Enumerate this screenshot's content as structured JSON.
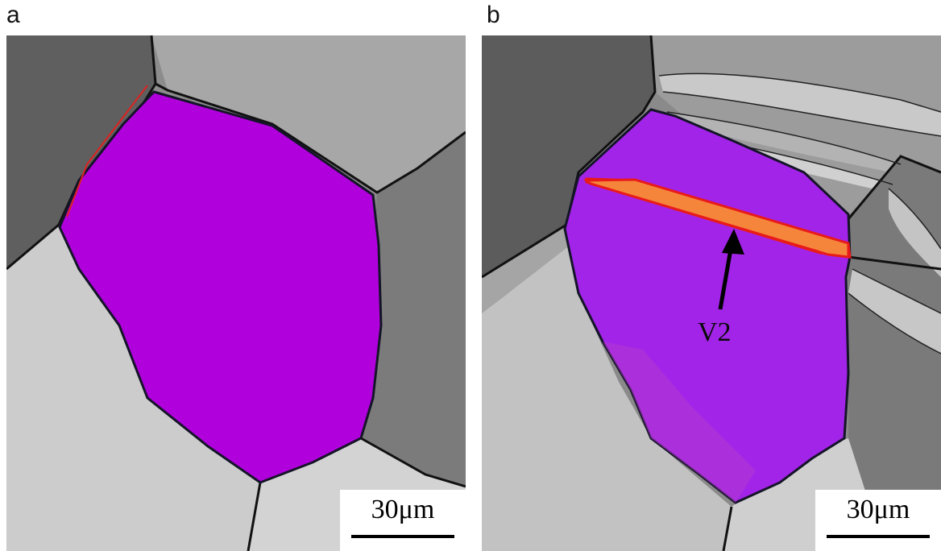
{
  "panels": [
    {
      "label": "a",
      "scale_text": "30μm"
    },
    {
      "label": "b",
      "scale_text": "30μm",
      "annotation": "V2"
    }
  ],
  "colors": {
    "highlighted_grain": "#b000dc",
    "twin_band": "#f5853a",
    "twin_border": "#e81a1a",
    "boundary": "#111111"
  }
}
